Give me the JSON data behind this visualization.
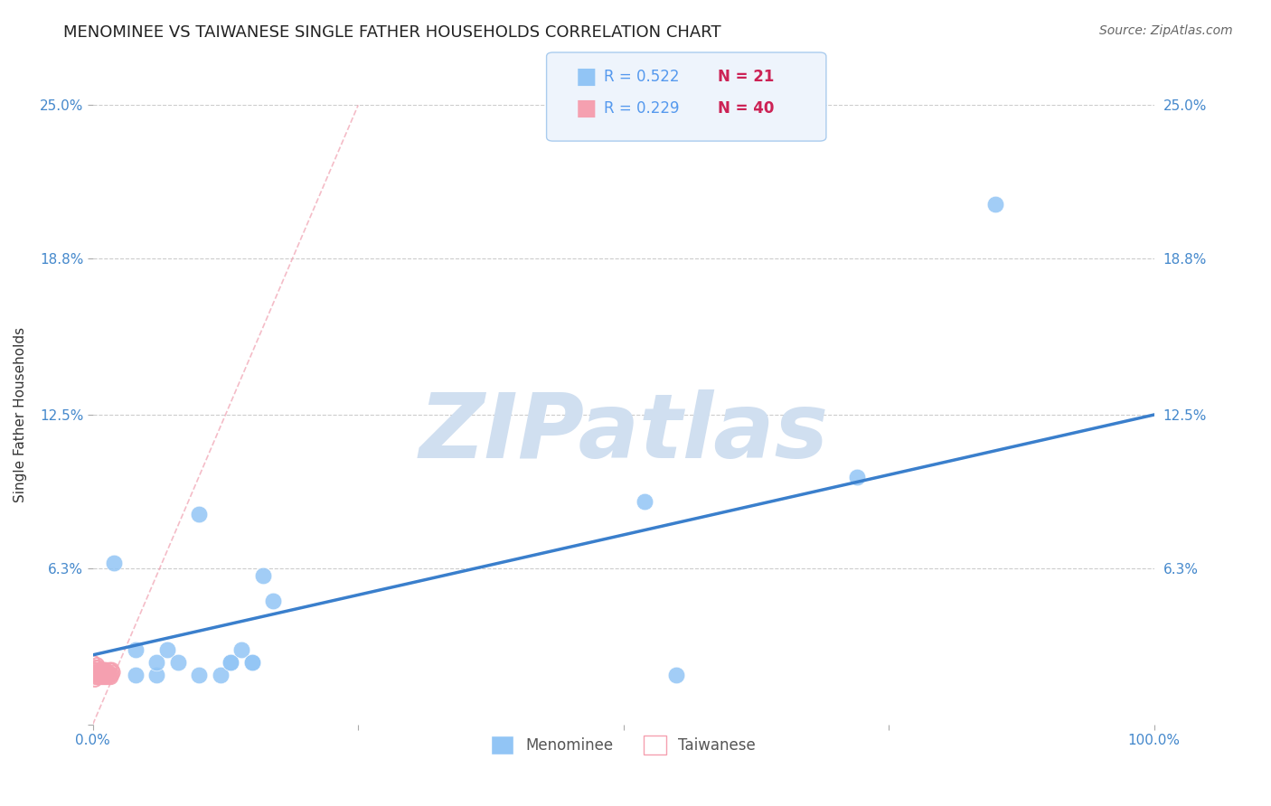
{
  "title": "MENOMINEE VS TAIWANESE SINGLE FATHER HOUSEHOLDS CORRELATION CHART",
  "source": "Source: ZipAtlas.com",
  "xlabel": "",
  "ylabel": "Single Father Households",
  "xlim": [
    0.0,
    1.0
  ],
  "ylim": [
    0.0,
    0.25
  ],
  "yticks": [
    0.0,
    0.063,
    0.125,
    0.188,
    0.25
  ],
  "ytick_labels": [
    "",
    "6.3%",
    "12.5%",
    "18.8%",
    "25.0%"
  ],
  "xticks": [
    0.0,
    0.25,
    0.5,
    0.75,
    1.0
  ],
  "xtick_labels": [
    "0.0%",
    "",
    "",
    "",
    "100.0%"
  ],
  "menominee_x": [
    0.02,
    0.04,
    0.04,
    0.06,
    0.06,
    0.07,
    0.08,
    0.1,
    0.1,
    0.12,
    0.13,
    0.13,
    0.14,
    0.15,
    0.15,
    0.16,
    0.17,
    0.52,
    0.55,
    0.72,
    0.85
  ],
  "menominee_y": [
    0.065,
    0.02,
    0.03,
    0.02,
    0.025,
    0.03,
    0.025,
    0.085,
    0.02,
    0.02,
    0.025,
    0.025,
    0.03,
    0.025,
    0.025,
    0.06,
    0.05,
    0.09,
    0.02,
    0.1,
    0.21
  ],
  "taiwanese_x": [
    0.0,
    0.001,
    0.001,
    0.002,
    0.002,
    0.002,
    0.003,
    0.003,
    0.003,
    0.004,
    0.004,
    0.004,
    0.005,
    0.005,
    0.005,
    0.006,
    0.006,
    0.007,
    0.007,
    0.008,
    0.008,
    0.009,
    0.009,
    0.01,
    0.01,
    0.011,
    0.011,
    0.012,
    0.012,
    0.013,
    0.013,
    0.014,
    0.015,
    0.015,
    0.016,
    0.016,
    0.017,
    0.018,
    0.018,
    0.019
  ],
  "taiwanese_y": [
    0.025,
    0.02,
    0.022,
    0.02,
    0.018,
    0.022,
    0.019,
    0.021,
    0.023,
    0.02,
    0.022,
    0.024,
    0.019,
    0.021,
    0.023,
    0.02,
    0.022,
    0.019,
    0.021,
    0.02,
    0.022,
    0.019,
    0.021,
    0.02,
    0.022,
    0.019,
    0.021,
    0.02,
    0.022,
    0.019,
    0.021,
    0.02,
    0.019,
    0.021,
    0.02,
    0.022,
    0.019,
    0.02,
    0.022,
    0.021
  ],
  "R_menominee": 0.522,
  "N_menominee": 21,
  "R_taiwanese": 0.229,
  "N_taiwanese": 40,
  "menominee_color": "#92c5f5",
  "taiwanese_color": "#f5a0b0",
  "regression_line_blue": {
    "x0": 0.0,
    "y0": 0.028,
    "x1": 1.0,
    "y1": 0.125
  },
  "diagonal_line": {
    "x0": 0.0,
    "y0": 0.0,
    "x1": 0.25,
    "y1": 0.25
  },
  "background_color": "#ffffff",
  "grid_color": "#cccccc",
  "title_fontsize": 13,
  "axis_label_fontsize": 11,
  "tick_fontsize": 11,
  "watermark_text": "ZIPatlas",
  "watermark_color": "#d0dff0",
  "legend_r_color": "#5599ee",
  "legend_n_color": "#cc2255"
}
